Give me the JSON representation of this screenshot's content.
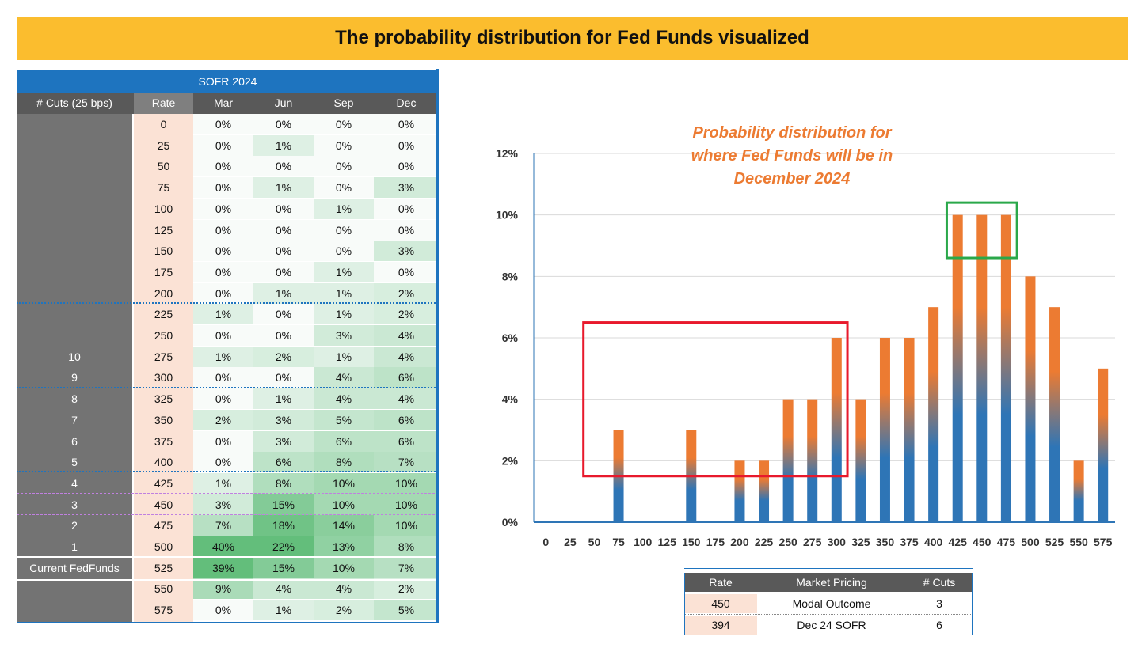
{
  "banner": {
    "title": "The probability distribution for Fed Funds visualized"
  },
  "sofr_table": {
    "title": "SOFR 2024",
    "headers": [
      "# Cuts (25 bps)",
      "Rate",
      "Mar",
      "Jun",
      "Sep",
      "Dec"
    ],
    "rows": [
      {
        "cuts": "",
        "rate": "0",
        "vals": [
          "0%",
          "0%",
          "0%",
          "0%"
        ]
      },
      {
        "cuts": "",
        "rate": "25",
        "vals": [
          "0%",
          "1%",
          "0%",
          "0%"
        ]
      },
      {
        "cuts": "",
        "rate": "50",
        "vals": [
          "0%",
          "0%",
          "0%",
          "0%"
        ]
      },
      {
        "cuts": "",
        "rate": "75",
        "vals": [
          "0%",
          "1%",
          "0%",
          "3%"
        ]
      },
      {
        "cuts": "",
        "rate": "100",
        "vals": [
          "0%",
          "0%",
          "1%",
          "0%"
        ]
      },
      {
        "cuts": "",
        "rate": "125",
        "vals": [
          "0%",
          "0%",
          "0%",
          "0%"
        ]
      },
      {
        "cuts": "",
        "rate": "150",
        "vals": [
          "0%",
          "0%",
          "0%",
          "3%"
        ]
      },
      {
        "cuts": "",
        "rate": "175",
        "vals": [
          "0%",
          "0%",
          "1%",
          "0%"
        ]
      },
      {
        "cuts": "",
        "rate": "200",
        "vals": [
          "0%",
          "1%",
          "1%",
          "2%"
        ]
      },
      {
        "cuts": "",
        "rate": "225",
        "vals": [
          "1%",
          "0%",
          "1%",
          "2%"
        ]
      },
      {
        "cuts": "",
        "rate": "250",
        "vals": [
          "0%",
          "0%",
          "3%",
          "4%"
        ]
      },
      {
        "cuts": "10",
        "rate": "275",
        "vals": [
          "1%",
          "2%",
          "1%",
          "4%"
        ]
      },
      {
        "cuts": "9",
        "rate": "300",
        "vals": [
          "0%",
          "0%",
          "4%",
          "6%"
        ]
      },
      {
        "cuts": "8",
        "rate": "325",
        "vals": [
          "0%",
          "1%",
          "4%",
          "4%"
        ]
      },
      {
        "cuts": "7",
        "rate": "350",
        "vals": [
          "2%",
          "3%",
          "5%",
          "6%"
        ]
      },
      {
        "cuts": "6",
        "rate": "375",
        "vals": [
          "0%",
          "3%",
          "6%",
          "6%"
        ]
      },
      {
        "cuts": "5",
        "rate": "400",
        "vals": [
          "0%",
          "6%",
          "8%",
          "7%"
        ]
      },
      {
        "cuts": "4",
        "rate": "425",
        "vals": [
          "1%",
          "8%",
          "10%",
          "10%"
        ]
      },
      {
        "cuts": "3",
        "rate": "450",
        "vals": [
          "3%",
          "15%",
          "10%",
          "10%"
        ]
      },
      {
        "cuts": "2",
        "rate": "475",
        "vals": [
          "7%",
          "18%",
          "14%",
          "10%"
        ]
      },
      {
        "cuts": "1",
        "rate": "500",
        "vals": [
          "40%",
          "22%",
          "13%",
          "8%"
        ]
      },
      {
        "cuts": "Current FedFunds",
        "rate": "525",
        "vals": [
          "39%",
          "15%",
          "10%",
          "7%"
        ]
      },
      {
        "cuts": "",
        "rate": "550",
        "vals": [
          "9%",
          "4%",
          "4%",
          "2%"
        ]
      },
      {
        "cuts": "",
        "rate": "575",
        "vals": [
          "0%",
          "1%",
          "2%",
          "5%"
        ]
      }
    ]
  },
  "chart_annotation": "Probability distribution for where Fed Funds will be in December 2024",
  "market_pricing": {
    "headers": [
      "Rate",
      "Market Pricing",
      "# Cuts"
    ],
    "rows": [
      {
        "rate": "450",
        "label": "Modal Outcome",
        "cuts": "3"
      },
      {
        "rate": "394",
        "label": "Dec 24 SOFR",
        "cuts": "6"
      }
    ]
  },
  "colors": {
    "banner": "#fbbd2e",
    "table_blue": "#1e74bf",
    "header_gray": "#595959",
    "cuts_gray": "#737373",
    "rate_peach": "#fbe2d5",
    "bar_top": "#ec7b32",
    "bar_bottom": "#2e75b6",
    "annotation": "#ec7b32",
    "red_box": "#e8192c",
    "green_box": "#2aa84a"
  },
  "chart_data": {
    "type": "bar",
    "title": "Probability distribution for where Fed Funds will be in December 2024",
    "categories": [
      "0",
      "25",
      "50",
      "75",
      "100",
      "125",
      "150",
      "175",
      "200",
      "225",
      "250",
      "275",
      "300",
      "325",
      "350",
      "375",
      "400",
      "425",
      "450",
      "475",
      "500",
      "525",
      "550",
      "575"
    ],
    "values": [
      0,
      0,
      0,
      3,
      0,
      0,
      3,
      0,
      2,
      2,
      4,
      4,
      6,
      4,
      6,
      6,
      7,
      10,
      10,
      10,
      8,
      7,
      2,
      5
    ],
    "y_ticks": [
      "0%",
      "2%",
      "4%",
      "6%",
      "8%",
      "10%",
      "12%"
    ],
    "ylim": [
      0,
      12
    ],
    "xlabel": "",
    "ylabel": "",
    "highlight_boxes": [
      {
        "color": "red",
        "from_category": "50",
        "to_category": "300",
        "y_range": [
          1.5,
          6.5
        ]
      },
      {
        "color": "green",
        "from_category": "425",
        "to_category": "475",
        "y_range": [
          8.6,
          10.4
        ]
      }
    ]
  }
}
